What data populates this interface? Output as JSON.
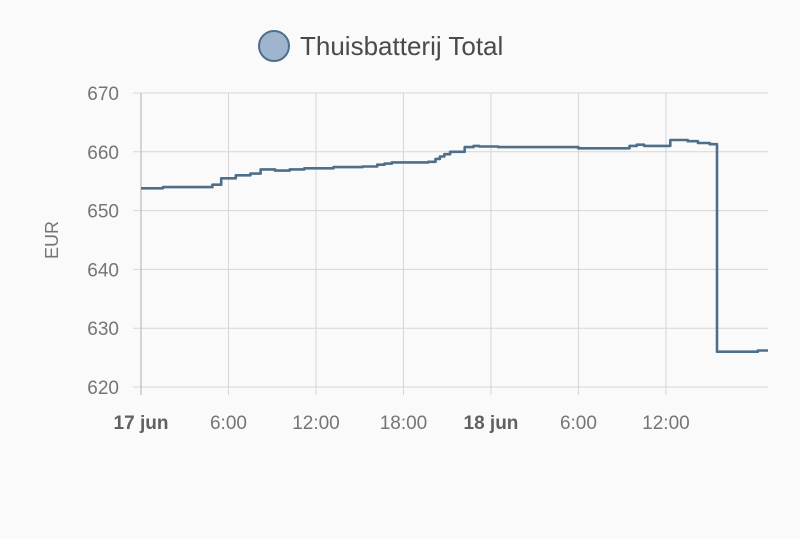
{
  "chart_data": {
    "type": "line",
    "step": true,
    "legend": {
      "name": "Thuisbatterij Total",
      "marker_fill": "#9fb5cd",
      "marker_stroke": "#4d6f8b",
      "placement": "top-center"
    },
    "ylabel": "EUR",
    "ylim": [
      620,
      670
    ],
    "yticks": [
      620,
      630,
      640,
      650,
      660,
      670
    ],
    "xlim_hours": [
      0,
      43
    ],
    "xticks": [
      {
        "hour": 0,
        "label": "17 jun",
        "bold": true
      },
      {
        "hour": 6,
        "label": "6:00",
        "bold": false
      },
      {
        "hour": 12,
        "label": "12:00",
        "bold": false
      },
      {
        "hour": 18,
        "label": "18:00",
        "bold": false
      },
      {
        "hour": 24,
        "label": "18 jun",
        "bold": true
      },
      {
        "hour": 30,
        "label": "6:00",
        "bold": false
      },
      {
        "hour": 36,
        "label": "12:00",
        "bold": false
      }
    ],
    "grid": true,
    "series": [
      {
        "name": "Thuisbatterij Total",
        "color": "#4d6f8b",
        "x_hours": [
          0,
          1.5,
          4.3,
          4.9,
          5.5,
          6.5,
          7.5,
          8.2,
          9.2,
          10.2,
          11.2,
          13.2,
          15.2,
          16.2,
          16.7,
          17.2,
          19.7,
          20.2,
          20.5,
          20.8,
          21.2,
          22.2,
          22.8,
          23.2,
          24.5,
          27,
          30,
          32.5,
          33.5,
          34,
          34.5,
          35,
          36,
          36.3,
          37.5,
          38.2,
          39,
          39.5,
          42.3,
          43
        ],
        "y": [
          653.8,
          654,
          654,
          654.4,
          655.5,
          656,
          656.3,
          657,
          656.8,
          657,
          657.2,
          657.4,
          657.5,
          657.8,
          658,
          658.2,
          658.3,
          658.8,
          659.2,
          659.6,
          660,
          660.8,
          661,
          660.9,
          660.8,
          660.8,
          660.6,
          660.6,
          661,
          661.2,
          661,
          661,
          661,
          662,
          661.8,
          661.5,
          661.3,
          626,
          626.2,
          626.2
        ]
      }
    ]
  }
}
